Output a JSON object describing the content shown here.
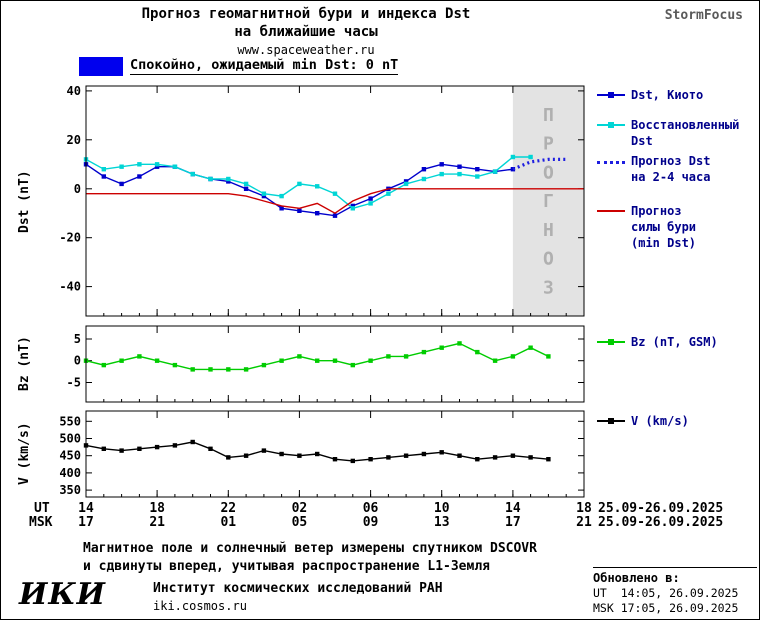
{
  "header": {
    "title_line1": "Прогноз геомагнитной бури и индекса Dst",
    "title_line2": "на ближайшие часы",
    "website": "www.spaceweather.ru",
    "brand": "StormFocus"
  },
  "banner": {
    "label": "Спокойно, ожидаемый min Dst: 0 nT",
    "color": "#0000ee"
  },
  "x_hours": [
    0,
    1,
    2,
    3,
    4,
    5,
    6,
    7,
    8,
    9,
    10,
    11,
    12,
    13,
    14,
    15,
    16,
    17,
    18,
    19,
    20,
    21,
    22,
    23,
    24,
    25,
    26,
    27,
    28
  ],
  "xaxis": {
    "ut_label": "UT",
    "msk_label": "MSK",
    "tick_hours": [
      0,
      4,
      8,
      12,
      16,
      20,
      24,
      28
    ],
    "ut_ticks": [
      "14",
      "18",
      "22",
      "02",
      "06",
      "10",
      "14",
      "18"
    ],
    "msk_ticks": [
      "17",
      "21",
      "01",
      "05",
      "09",
      "13",
      "17",
      "21"
    ],
    "date_ut": "25.09-26.09.2025",
    "date_msk": "25.09-26.09.2025"
  },
  "chart_data": [
    {
      "id": "dst",
      "type": "line",
      "title": "Прогноз геомагнитной бури и индекса Dst на ближайшие часы",
      "ylabel": "Dst (nT)",
      "ylim": [
        -52,
        42
      ],
      "yticks": [
        40,
        20,
        0,
        -20,
        -40
      ],
      "x_unit": "hours, UT 14:00 25.09.2025 — 18:00 26.09.2025",
      "forecast_region": {
        "x_start": 24,
        "x_end": 28,
        "label": "ПРОГНОЗ"
      },
      "series": [
        {
          "name": "Dst, Киото",
          "color": "#0000cc",
          "marker": "square",
          "values": [
            10,
            5,
            2,
            5,
            9,
            9,
            6,
            4,
            3,
            0,
            -3,
            -8,
            -9,
            -10,
            -11,
            -7,
            -4,
            0,
            3,
            8,
            10,
            9,
            8,
            7,
            8,
            null,
            null,
            null,
            null
          ]
        },
        {
          "name": "Восстановленный Dst",
          "color": "#00d5d5",
          "marker": "square",
          "values": [
            12,
            8,
            9,
            10,
            10,
            9,
            6,
            4,
            4,
            2,
            -2,
            -3,
            2,
            1,
            -2,
            -8,
            -6,
            -2,
            2,
            4,
            6,
            6,
            5,
            7,
            13,
            13,
            null,
            null,
            null
          ]
        },
        {
          "name": "Прогноз Dst на 2-4 часа",
          "color": "#1e1ee0",
          "style": "dotted",
          "values": [
            null,
            null,
            null,
            null,
            null,
            null,
            null,
            null,
            null,
            null,
            null,
            null,
            null,
            null,
            null,
            null,
            null,
            null,
            null,
            null,
            null,
            null,
            null,
            null,
            8,
            11,
            12,
            12,
            null
          ]
        },
        {
          "name": "Прогноз силы бури (min Dst)",
          "color": "#cc0000",
          "values": [
            -2,
            -2,
            -2,
            -2,
            -2,
            -2,
            -2,
            -2,
            -2,
            -3,
            -5,
            -7,
            -8,
            -6,
            -10,
            -5,
            -2,
            0,
            0,
            0,
            0,
            0,
            0,
            0,
            0,
            0,
            0,
            0,
            0
          ]
        }
      ]
    },
    {
      "id": "bz",
      "type": "line",
      "ylabel": "Bz (nT)",
      "ylim": [
        -9.5,
        8
      ],
      "yticks": [
        5,
        0,
        -5
      ],
      "series": [
        {
          "name": "Bz (nT, GSM)",
          "color": "#00cc00",
          "marker": "square",
          "values": [
            0,
            -1,
            0,
            1,
            0,
            -1,
            -2,
            -2,
            -2,
            -2,
            -1,
            0,
            1,
            0,
            0,
            -1,
            0,
            1,
            1,
            2,
            3,
            4,
            2,
            0,
            1,
            3,
            1,
            null,
            null
          ]
        }
      ]
    },
    {
      "id": "v",
      "type": "line",
      "ylabel": "V (km/s)",
      "ylim": [
        330,
        580
      ],
      "yticks": [
        550,
        500,
        450,
        400,
        350
      ],
      "series": [
        {
          "name": "V (km/s)",
          "color": "#000000",
          "marker": "square",
          "values": [
            480,
            470,
            465,
            470,
            475,
            480,
            490,
            470,
            445,
            450,
            465,
            455,
            450,
            455,
            440,
            435,
            440,
            445,
            450,
            455,
            460,
            450,
            440,
            445,
            450,
            445,
            440,
            null,
            null
          ]
        }
      ]
    }
  ],
  "legend": {
    "dst_kyoto": "Dst, Киото",
    "recon_dst": "Восстановленный\nDst",
    "forecast_dst": "Прогноз Dst\nна 2-4 часа",
    "forecast_storm": "Прогноз\nсилы бури\n(min Dst)",
    "bz": "Bz (nT, GSM)",
    "v": "V (km/s)"
  },
  "footer": {
    "note_line1": "Магнитное поле и солнечный ветер измерены спутником DSCOVR",
    "note_line2": "и сдвинуты вперед, учитывая распространение L1-Земля",
    "logo": "ИКИ",
    "institute": "Институт космических исследований РАН",
    "site": "iki.cosmos.ru",
    "updated_label": "Обновлено в:",
    "updated_ut": "UT  14:05, 26.09.2025",
    "updated_msk": "MSK 17:05, 26.09.2025"
  }
}
